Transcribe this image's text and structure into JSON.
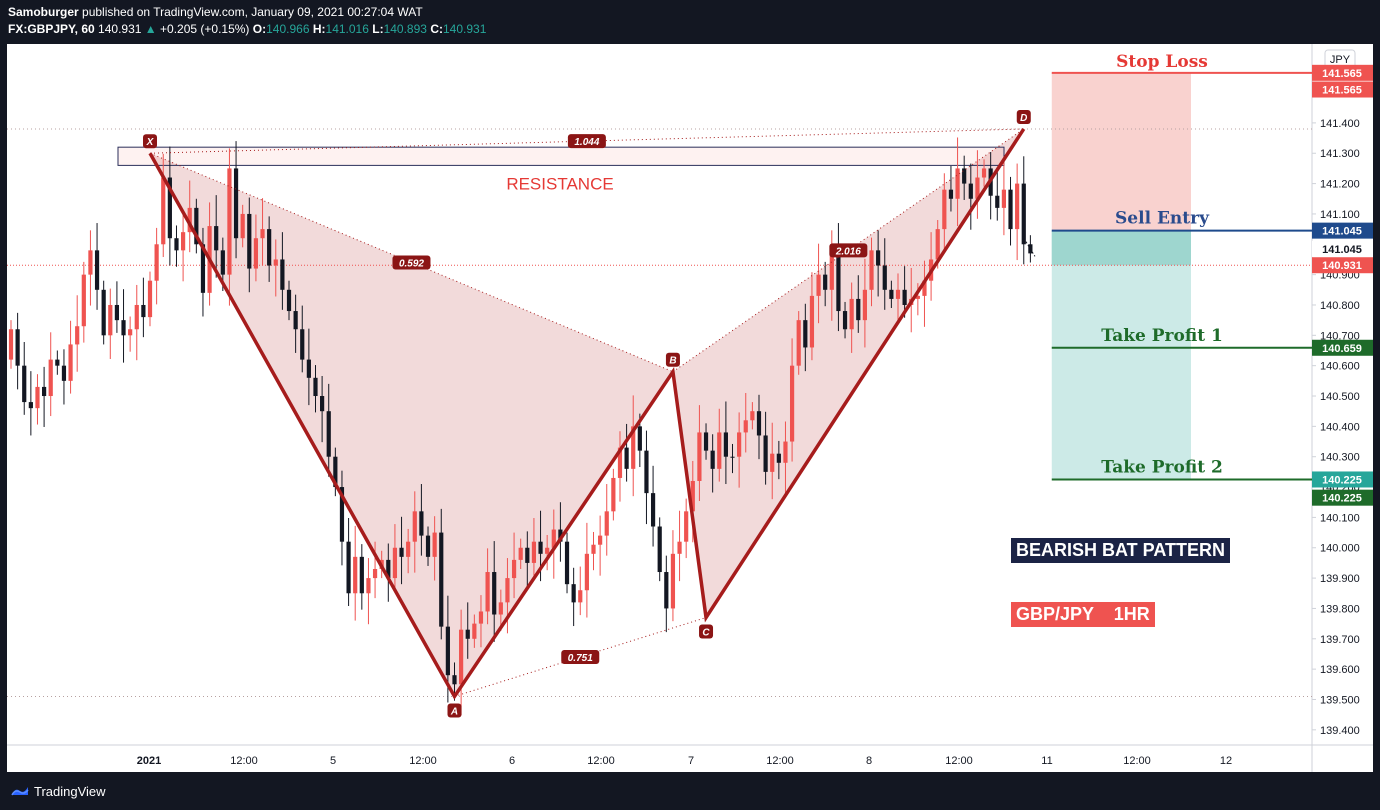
{
  "header": {
    "author": "Samoburger",
    "published_text": "published on TradingView.com, January 09, 2021 00:27:04 WAT",
    "symbol": "FX:GBPJPY, 60",
    "last": "140.931",
    "change": "+0.205 (+0.15%)",
    "open_label": "O:",
    "open": "140.966",
    "high_label": "H:",
    "high": "141.016",
    "low_label": "L:",
    "low": "140.893",
    "close_label": "C:",
    "close": "140.931"
  },
  "footer": {
    "brand": "TradingView",
    "logo_icon": "tradingview-logo-icon"
  },
  "chart_data": {
    "type": "candlestick",
    "title": "",
    "currency_badge": "JPY",
    "y_ticks": [
      "141.400",
      "141.300",
      "141.200",
      "141.100",
      "141.000",
      "140.900",
      "140.800",
      "140.700",
      "140.600",
      "140.500",
      "140.400",
      "140.300",
      "140.200",
      "140.100",
      "140.000",
      "139.900",
      "139.800",
      "139.700",
      "139.600",
      "139.500",
      "139.400"
    ],
    "ylim": [
      139.35,
      141.66
    ],
    "x_ticks": [
      "2021",
      "12:00",
      "5",
      "12:00",
      "6",
      "12:00",
      "7",
      "12:00",
      "8",
      "12:00",
      "11",
      "12:00",
      "12"
    ],
    "pattern_points": [
      {
        "label": "X",
        "price": 141.3
      },
      {
        "label": "A",
        "price": 139.51
      },
      {
        "label": "B",
        "price": 140.58
      },
      {
        "label": "C",
        "price": 139.77
      },
      {
        "label": "D",
        "price": 141.38
      }
    ],
    "ratios": [
      {
        "label": "0.592",
        "between": "XA-AB"
      },
      {
        "label": "0.751",
        "between": "AB-BC"
      },
      {
        "label": "2.016",
        "between": "BC-CD"
      },
      {
        "label": "1.044",
        "between": "XA-XD"
      }
    ],
    "annotations": {
      "resistance": "RESISTANCE",
      "stop_loss": "Stop Loss",
      "sell_entry": "Sell Entry",
      "take_profit_1": "Take Profit 1",
      "take_profit_2": "Take Profit 2",
      "pattern_name": "BEARISH BAT PATTERN",
      "pair": "GBP/JPY    1HR"
    },
    "levels": {
      "stop_loss": 141.565,
      "sell_entry": 141.045,
      "take_profit_1": 140.659,
      "take_profit_2": 140.225,
      "last_price": 140.931
    },
    "price_labels": [
      {
        "text": "141.565",
        "price": 141.565,
        "color": "#ef5350"
      },
      {
        "text": "141.565",
        "price": 141.51,
        "color": "#ef5350"
      },
      {
        "text": "141.045",
        "price": 141.045,
        "color": "#1e4a8c"
      },
      {
        "text": "141.045",
        "price": 140.985,
        "color": "#ffffff",
        "text_color": "#131722"
      },
      {
        "text": "140.931",
        "price": 140.931,
        "color": "#ef5350"
      },
      {
        "text": "140.659",
        "price": 140.659,
        "color": "#1e6b2a"
      },
      {
        "text": "140.225",
        "price": 140.225,
        "color": "#26a69a"
      },
      {
        "text": "140.225",
        "price": 140.165,
        "color": "#1e6b2a"
      }
    ],
    "colors": {
      "bull": "#131722",
      "bear": "#ef5350",
      "pattern": "#a61c1c",
      "stop_zone": "#f9d2cf",
      "target_zone": "#cceae7",
      "tp_line": "#1e6b2a",
      "entry_line": "#1e4a8c",
      "sl_line": "#ef5350"
    },
    "candles_close": [
      140.62,
      140.72,
      140.6,
      140.48,
      140.46,
      140.53,
      140.5,
      140.62,
      140.6,
      140.55,
      140.67,
      140.73,
      140.9,
      140.98,
      140.85,
      140.7,
      140.8,
      140.75,
      140.7,
      140.72,
      140.8,
      140.76,
      140.88,
      141.0,
      141.22,
      141.02,
      140.98,
      141.04,
      141.12,
      141.0,
      140.84,
      141.06,
      140.98,
      140.9,
      141.25,
      141.02,
      141.1,
      140.92,
      141.02,
      141.05,
      140.93,
      140.95,
      140.85,
      140.78,
      140.72,
      140.62,
      140.56,
      140.5,
      140.45,
      140.3,
      140.2,
      140.02,
      139.85,
      139.97,
      139.85,
      139.9,
      139.93,
      139.96,
      139.9,
      140.0,
      139.97,
      140.02,
      140.12,
      140.04,
      139.97,
      140.05,
      139.74,
      139.58,
      139.55,
      139.73,
      139.7,
      139.75,
      139.79,
      139.92,
      139.78,
      139.82,
      139.9,
      139.96,
      140.0,
      139.95,
      140.02,
      139.98,
      140.0,
      140.06,
      140.02,
      139.88,
      139.82,
      139.86,
      139.98,
      140.01,
      140.04,
      140.12,
      140.23,
      140.33,
      140.26,
      140.4,
      140.32,
      140.18,
      140.07,
      139.92,
      139.8,
      139.98,
      140.02,
      140.12,
      140.22,
      140.38,
      140.32,
      140.26,
      140.38,
      140.3,
      140.3,
      140.38,
      140.42,
      140.45,
      140.37,
      140.25,
      140.31,
      140.28,
      140.35,
      140.6,
      140.75,
      140.66,
      140.83,
      140.9,
      140.85,
      140.98,
      140.78,
      140.72,
      140.82,
      140.75,
      140.85,
      140.98,
      140.93,
      140.85,
      140.82,
      140.85,
      140.8,
      140.82,
      140.83,
      140.88,
      140.95,
      141.05,
      141.18,
      141.15,
      141.25,
      141.2,
      141.15,
      141.22,
      141.25,
      141.16,
      141.12,
      141.18,
      141.05,
      141.2,
      141.0,
      140.93
    ],
    "candles_open": [
      140.72,
      140.6,
      140.48,
      140.46,
      140.53,
      140.5,
      140.62,
      140.6,
      140.55,
      140.67,
      140.73,
      140.9,
      140.98,
      140.85,
      140.7,
      140.8,
      140.75,
      140.7,
      140.72,
      140.8,
      140.76,
      140.88,
      141.0,
      141.22,
      141.02,
      140.98,
      141.04,
      141.12,
      141.0,
      140.84,
      141.06,
      140.98,
      140.9,
      141.25,
      141.02,
      141.1,
      140.92,
      141.02,
      141.05,
      140.93,
      140.95,
      140.85,
      140.78,
      140.72,
      140.62,
      140.56,
      140.5,
      140.45,
      140.3,
      140.2,
      140.02,
      139.85,
      139.97,
      139.85,
      139.9,
      139.93,
      139.96,
      139.9,
      140.0,
      139.97,
      140.02,
      140.12,
      140.04,
      139.97,
      140.05,
      139.74,
      139.58,
      139.55,
      139.73,
      139.7,
      139.75,
      139.79,
      139.92,
      139.78,
      139.82,
      139.9,
      139.96,
      140.0,
      139.95,
      140.02,
      139.98,
      140.0,
      140.06,
      140.02,
      139.88,
      139.82,
      139.86,
      139.98,
      140.01,
      140.04,
      140.12,
      140.23,
      140.33,
      140.26,
      140.4,
      140.32,
      140.18,
      140.07,
      139.92,
      139.8,
      139.98,
      140.02,
      140.12,
      140.22,
      140.38,
      140.32,
      140.26,
      140.38,
      140.3,
      140.3,
      140.38,
      140.42,
      140.45,
      140.37,
      140.25,
      140.31,
      140.28,
      140.35,
      140.6,
      140.75,
      140.66,
      140.83,
      140.9,
      140.85,
      140.98,
      140.78,
      140.72,
      140.82,
      140.75,
      140.85,
      140.98,
      140.93,
      140.85,
      140.82,
      140.85,
      140.8,
      140.82,
      140.83,
      140.88,
      140.95,
      141.05,
      141.18,
      141.15,
      141.25,
      141.2,
      141.15,
      141.22,
      141.25,
      141.16,
      141.12,
      141.18,
      141.05,
      141.2,
      141.0,
      140.97
    ]
  }
}
